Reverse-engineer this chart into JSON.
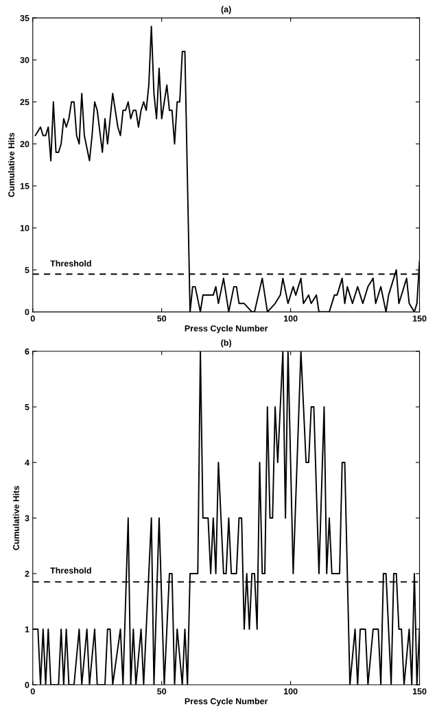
{
  "chart_data": [
    {
      "type": "line",
      "title": "(a)",
      "xlabel": "Press Cycle Number",
      "ylabel": "Cumulative Hits",
      "xlim": [
        0,
        150
      ],
      "ylim": [
        0,
        35
      ],
      "xticks": [
        0,
        50,
        100,
        150
      ],
      "yticks": [
        0,
        5,
        10,
        15,
        20,
        25,
        30,
        35
      ],
      "grid": false,
      "legend": false,
      "ref_lines": [
        {
          "axis": "y",
          "value": 4.5,
          "label": "Threshold",
          "line_style": "dashed",
          "color": "#000000"
        }
      ],
      "series": [
        {
          "color": "#000000",
          "x": [
            1,
            3,
            4,
            5,
            6,
            7,
            8,
            9,
            10,
            11,
            12,
            13,
            14,
            15,
            16,
            17,
            18,
            19,
            20,
            22,
            23,
            24,
            25,
            27,
            28,
            29,
            31,
            33,
            34,
            35,
            36,
            37,
            38,
            39,
            40,
            41,
            42,
            43,
            44,
            45,
            46,
            47,
            48,
            49,
            50,
            52,
            53,
            54,
            55,
            56,
            57,
            58,
            59,
            61,
            62,
            63,
            65,
            66,
            69,
            70,
            71,
            72,
            74,
            76,
            78,
            79,
            80,
            82,
            85,
            86,
            89,
            91,
            94,
            96,
            97,
            99,
            101,
            102,
            104,
            105,
            107,
            108,
            110,
            111,
            115,
            117,
            118,
            120,
            121,
            122,
            124,
            126,
            128,
            130,
            132,
            133,
            135,
            137,
            138,
            141,
            142,
            145,
            146,
            148,
            149,
            150
          ],
          "values": [
            21,
            22,
            21,
            21,
            22,
            18,
            25,
            19,
            19,
            20,
            23,
            22,
            23,
            25,
            25,
            21,
            20,
            26,
            21,
            18,
            21,
            25,
            24,
            19,
            23,
            20,
            26,
            22,
            21,
            24,
            24,
            25,
            23,
            24,
            24,
            22,
            24,
            25,
            24,
            27,
            34,
            26,
            23,
            29,
            23,
            27,
            24,
            24,
            20,
            25,
            25,
            31,
            31,
            0,
            3,
            3,
            0,
            2,
            2,
            2,
            3,
            1,
            4,
            0,
            3,
            3,
            1,
            1,
            0,
            0,
            4,
            0,
            1,
            2,
            4,
            1,
            3,
            2,
            4,
            1,
            2,
            1,
            2,
            0,
            0,
            2,
            2,
            4,
            1,
            3,
            1,
            3,
            1,
            3,
            4,
            1,
            3,
            0,
            2,
            5,
            1,
            4,
            1,
            0,
            1,
            6
          ]
        }
      ]
    },
    {
      "type": "line",
      "title": "(b)",
      "xlabel": "Press Cycle Number",
      "ylabel": "Cumulative Hits",
      "xlim": [
        0,
        150
      ],
      "ylim": [
        0,
        6
      ],
      "xticks": [
        0,
        50,
        100,
        150
      ],
      "yticks": [
        0,
        1,
        2,
        3,
        4,
        5,
        6
      ],
      "grid": false,
      "legend": false,
      "ref_lines": [
        {
          "axis": "y",
          "value": 1.85,
          "label": "Threshold",
          "line_style": "dashed",
          "color": "#000000"
        }
      ],
      "series": [
        {
          "color": "#000000",
          "x": [
            0,
            2,
            3,
            4,
            5,
            6,
            7,
            10,
            11,
            12,
            13,
            14,
            16,
            18,
            19,
            21,
            22,
            24,
            25,
            28,
            29,
            30,
            31,
            34,
            35,
            37,
            38,
            39,
            40,
            42,
            43,
            46,
            47,
            49,
            51,
            53,
            54,
            55,
            56,
            58,
            59,
            60,
            61,
            64,
            65,
            66,
            68,
            69,
            70,
            71,
            72,
            74,
            75,
            76,
            77,
            79,
            80,
            81,
            82,
            83,
            84,
            85,
            86,
            87,
            88,
            89,
            90,
            91,
            92,
            93,
            94,
            95,
            97,
            98,
            99,
            101,
            104,
            106,
            107,
            108,
            109,
            111,
            113,
            114,
            115,
            116,
            119,
            120,
            121,
            123,
            125,
            126,
            127,
            129,
            130,
            132,
            134,
            135,
            136,
            137,
            139,
            140,
            141,
            142,
            143,
            144,
            146,
            147,
            148,
            149,
            150
          ],
          "values": [
            1,
            1,
            0,
            1,
            0,
            1,
            0,
            0,
            1,
            0,
            1,
            0,
            0,
            1,
            0,
            1,
            0,
            1,
            0,
            0,
            1,
            1,
            0,
            1,
            0,
            3,
            0,
            1,
            0,
            1,
            0,
            3,
            0,
            3,
            0,
            2,
            2,
            0,
            1,
            0,
            1,
            0,
            2,
            2,
            6,
            3,
            3,
            2,
            3,
            2,
            4,
            2,
            2,
            3,
            2,
            2,
            3,
            3,
            1,
            2,
            1,
            2,
            2,
            1,
            4,
            2,
            2,
            5,
            3,
            3,
            5,
            4,
            6,
            3,
            6,
            2,
            6,
            4,
            4,
            5,
            5,
            2,
            5,
            2,
            3,
            2,
            2,
            4,
            4,
            0,
            1,
            0,
            1,
            1,
            0,
            1,
            1,
            0,
            2,
            2,
            0,
            2,
            2,
            1,
            1,
            0,
            1,
            0,
            2,
            0,
            1
          ]
        }
      ]
    }
  ]
}
